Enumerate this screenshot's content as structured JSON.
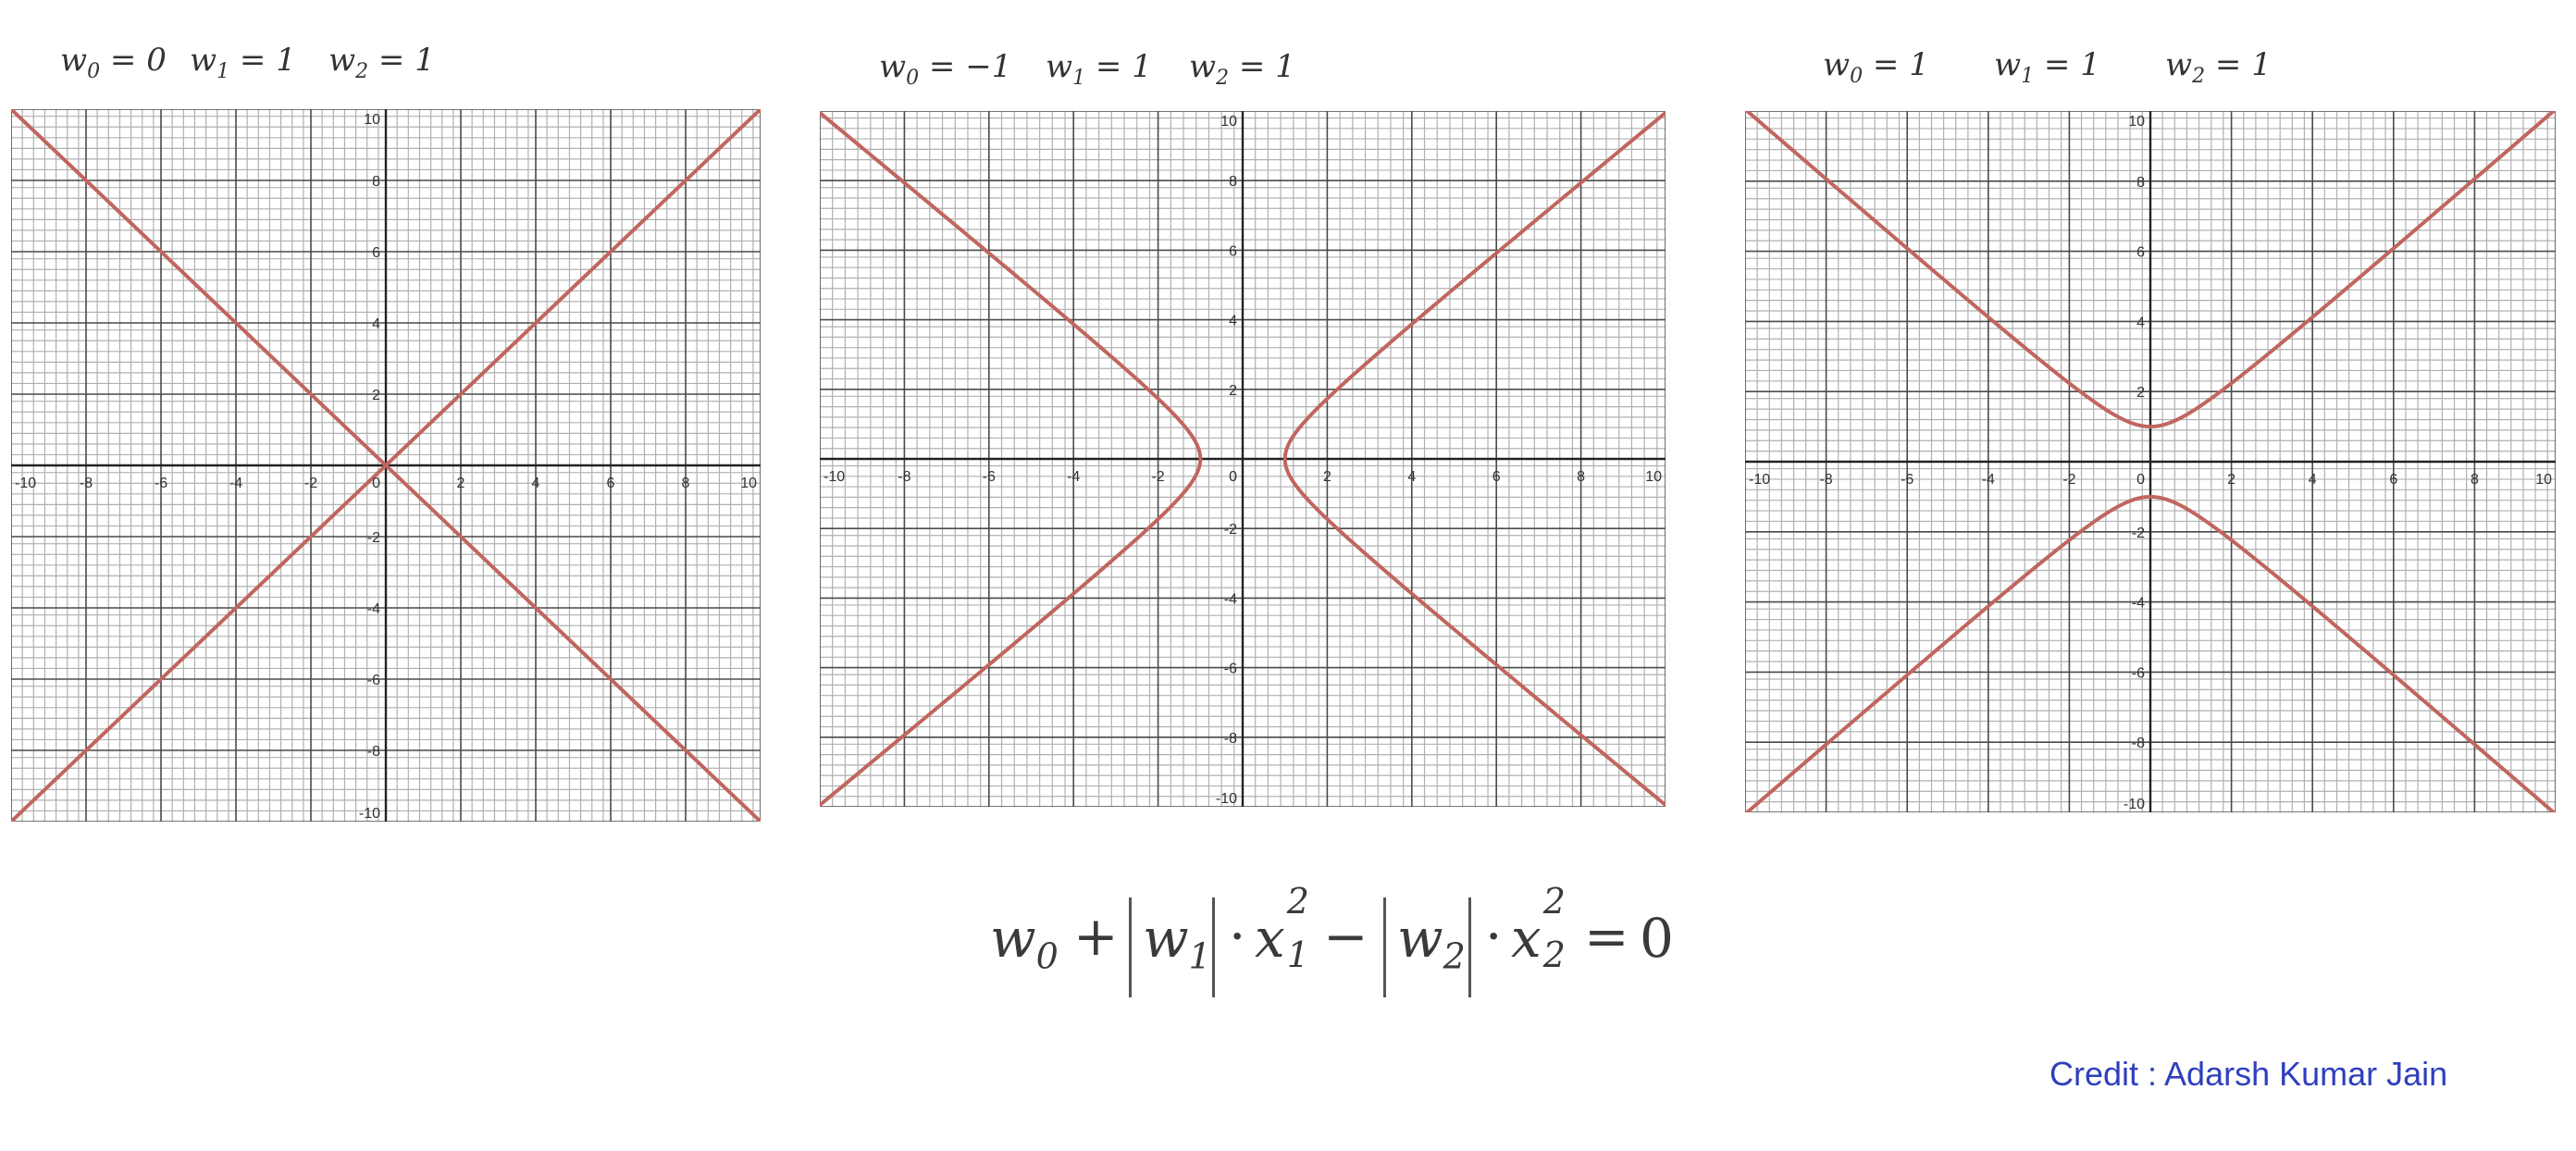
{
  "colors": {
    "curve": "#c0665f",
    "grid_minor": "#b0b0b0",
    "grid_major": "#4a4a4a",
    "axis": "#222222",
    "credit": "#2f3fbf"
  },
  "panels": [
    {
      "params": {
        "w0_label": "w",
        "w0_sub": "0",
        "w0_value": "= 0",
        "w1_label": "w",
        "w1_sub": "1",
        "w1_value": "= 1",
        "w2_label": "w",
        "w2_sub": "2",
        "w2_value": "= 1"
      }
    },
    {
      "params": {
        "w0_label": "w",
        "w0_sub": "0",
        "w0_value": "= −1",
        "w1_label": "w",
        "w1_sub": "1",
        "w1_value": "= 1",
        "w2_label": "w",
        "w2_sub": "2",
        "w2_value": "= 1"
      }
    },
    {
      "params": {
        "w0_label": "w",
        "w0_sub": "0",
        "w0_value": "= 1",
        "w1_label": "w",
        "w1_sub": "1",
        "w1_value": "= 1",
        "w2_label": "w",
        "w2_sub": "2",
        "w2_value": "= 1"
      }
    }
  ],
  "chart_data": [
    {
      "type": "line",
      "title": "w0 = 0, w1 = 1, w2 = 1",
      "equation": "x1^2 - x2^2 = 0",
      "xlim": [
        -10,
        10
      ],
      "ylim": [
        -10,
        10
      ],
      "x_ticks": [
        "-10",
        "-8",
        "-6",
        "-4",
        "-2",
        "0",
        "2",
        "4",
        "6",
        "8",
        "10"
      ],
      "y_ticks": [
        "10",
        "8",
        "6",
        "4",
        "2",
        "-2",
        "-4",
        "-6",
        "-8",
        "-10"
      ],
      "w0": 0,
      "w1": 1,
      "w2": 1,
      "series": [
        {
          "name": "x2 = x1",
          "x": [
            -10,
            10
          ],
          "y": [
            -10,
            10
          ]
        },
        {
          "name": "x2 = -x1",
          "x": [
            -10,
            10
          ],
          "y": [
            10,
            -10
          ]
        }
      ]
    },
    {
      "type": "line",
      "title": "w0 = -1, w1 = 1, w2 = 1",
      "equation": "-1 + x1^2 - x2^2 = 0",
      "xlim": [
        -10,
        10
      ],
      "ylim": [
        -10,
        10
      ],
      "x_ticks": [
        "-10",
        "-8",
        "-6",
        "-4",
        "-2",
        "0",
        "2",
        "4",
        "6",
        "8",
        "10"
      ],
      "y_ticks": [
        "10",
        "8",
        "6",
        "4",
        "2",
        "-2",
        "-4",
        "-6",
        "-8",
        "-10"
      ],
      "w0": -1,
      "w1": 1,
      "w2": 1,
      "series": [
        {
          "name": "right branch",
          "vertex": [
            1,
            0
          ]
        },
        {
          "name": "left branch",
          "vertex": [
            -1,
            0
          ]
        }
      ]
    },
    {
      "type": "line",
      "title": "w0 = 1, w1 = 1, w2 = 1",
      "equation": "1 + x1^2 - x2^2 = 0",
      "xlim": [
        -10,
        10
      ],
      "ylim": [
        -10,
        10
      ],
      "x_ticks": [
        "-10",
        "-8",
        "-6",
        "-4",
        "-2",
        "0",
        "2",
        "4",
        "6",
        "8",
        "10"
      ],
      "y_ticks": [
        "10",
        "8",
        "6",
        "4",
        "2",
        "-2",
        "-4",
        "-6",
        "-8",
        "-10"
      ],
      "w0": 1,
      "w1": 1,
      "w2": 1,
      "series": [
        {
          "name": "upper branch",
          "vertex": [
            0,
            1
          ]
        },
        {
          "name": "lower branch",
          "vertex": [
            0,
            -1
          ]
        }
      ]
    }
  ],
  "equation": {
    "w0": "w",
    "w0_sub": "0",
    "plus": "+",
    "w1": "w",
    "w1_sub": "1",
    "dot1": "·",
    "x1": "x",
    "x1_sub": "1",
    "x1_sup": "2",
    "minus": "−",
    "w2": "w",
    "w2_sub": "2",
    "dot2": "·",
    "x2": "x",
    "x2_sub": "2",
    "x2_sup": "2",
    "equals": "=",
    "zero": "0"
  },
  "credit": "Credit : Adarsh Kumar Jain"
}
